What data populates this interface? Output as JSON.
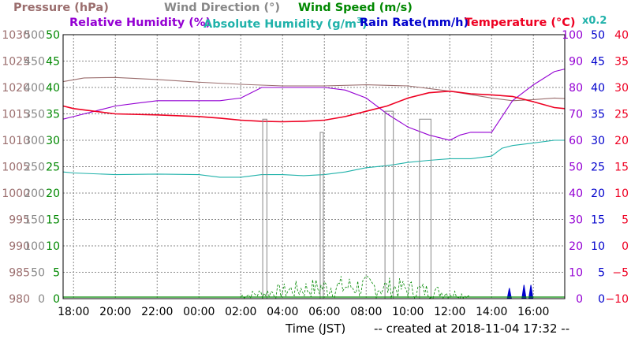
{
  "legend": {
    "pressure": "Pressure (hPa)",
    "wind_direction": "Wind Direction (°)",
    "wind_speed": "Wind Speed (m/s)",
    "relative_humidity": "Relative Humidity (%)",
    "absolute_humidity_prefix": "Absolute Humidity (g/m",
    "absolute_humidity_sup": "3",
    "absolute_humidity_suffix": ")",
    "rain_rate": "Rain Rate(mm/h)",
    "temperature": "Temperature (°C)",
    "scale_factor": "x0.2"
  },
  "colors": {
    "pressure": "#9b6e6e",
    "wind_direction": "#888888",
    "wind_speed": "#008800",
    "relative_humidity": "#9400d3",
    "absolute_humidity": "#20b2aa",
    "rain_rate": "#0000cc",
    "temperature": "#ee0022",
    "grid": "#888888"
  },
  "footer": {
    "xlabel": "Time (JST)",
    "created": "-- created at 2018-11-04 17:32 --"
  },
  "chart_data": {
    "type": "line",
    "xlabel": "Time (JST)",
    "x_tick_labels": [
      "18:00",
      "20:00",
      "22:00",
      "00:00",
      "02:00",
      "04:00",
      "06:00",
      "08:00",
      "10:00",
      "12:00",
      "14:00",
      "16:00"
    ],
    "x_range_hours": [
      17.5,
      41.5
    ],
    "grid": true,
    "axes": {
      "pressure": {
        "range": [
          980,
          1030
        ],
        "ticks": [
          "1030",
          "1025",
          "1020",
          "1015",
          "1010",
          "1005",
          "1000",
          "995",
          "990",
          "985",
          "980"
        ]
      },
      "wind_direction": {
        "range": [
          0,
          500
        ],
        "ticks": [
          "500",
          "450",
          "400",
          "350",
          "300",
          "250",
          "200",
          "150",
          "100",
          "50",
          "0"
        ]
      },
      "wind_speed": {
        "range": [
          0,
          50
        ],
        "ticks": [
          "50",
          "45",
          "40",
          "35",
          "30",
          "25",
          "20",
          "15",
          "10",
          "5",
          "0"
        ]
      },
      "relative_humidity": {
        "range": [
          0,
          100
        ],
        "ticks": [
          "100",
          "90",
          "80",
          "70",
          "60",
          "50",
          "40",
          "30",
          "20",
          "10",
          "0"
        ]
      },
      "rain_rate": {
        "range": [
          0,
          50
        ],
        "ticks": [
          "50",
          "45",
          "40",
          "35",
          "30",
          "25",
          "20",
          "15",
          "10",
          "5",
          "0"
        ]
      },
      "temperature": {
        "range": [
          -10,
          40
        ],
        "ticks": [
          "40",
          "35",
          "30",
          "25",
          "20",
          "15",
          "10",
          "5",
          "0",
          "−5",
          "−10"
        ]
      }
    },
    "series": [
      {
        "name": "Pressure (hPa)",
        "axis": "pressure",
        "x": [
          17.5,
          18.5,
          20,
          22,
          24,
          26,
          28,
          30,
          32,
          34,
          36,
          38,
          39,
          40,
          41,
          41.5
        ],
        "y": [
          1021.1,
          1021.8,
          1021.9,
          1021.5,
          1021.0,
          1020.6,
          1020.3,
          1020.3,
          1020.5,
          1020.3,
          1019.3,
          1018.0,
          1017.5,
          1017.7,
          1018.0,
          1017.9
        ]
      },
      {
        "name": "Relative Humidity (%)",
        "axis": "relative_humidity",
        "x": [
          17.5,
          18,
          19,
          20,
          21,
          22,
          23,
          24,
          25,
          26,
          26.5,
          27,
          28,
          29,
          30,
          31,
          32,
          33,
          34,
          35,
          36,
          36.5,
          37,
          38,
          38.5,
          39,
          39.5,
          40,
          41,
          41.5
        ],
        "y": [
          68,
          69,
          71,
          73,
          74,
          75,
          75,
          75,
          75,
          76,
          78,
          80,
          80,
          80,
          80,
          79,
          76,
          70,
          65,
          62,
          60,
          62,
          63,
          63,
          69,
          75,
          78,
          81,
          86,
          87
        ]
      },
      {
        "name": "Temperature (°C)",
        "axis": "temperature",
        "x": [
          17.5,
          18,
          19,
          20,
          22,
          24,
          25,
          26,
          27,
          28,
          29,
          30,
          31,
          32,
          33,
          34,
          35,
          36,
          37,
          38,
          39,
          40,
          41,
          41.5
        ],
        "y": [
          26.5,
          26,
          25.5,
          25,
          24.8,
          24.5,
          24.2,
          23.8,
          23.6,
          23.5,
          23.6,
          23.8,
          24.5,
          25.5,
          26.5,
          28,
          29,
          29.3,
          28.8,
          28.6,
          28.3,
          27.3,
          26.2,
          26.0
        ]
      },
      {
        "name": "Absolute Humidity (g/m3)",
        "axis": "pressure_grid_0_50",
        "x": [
          17.5,
          18,
          20,
          22,
          24,
          25,
          26,
          27,
          28,
          29,
          30,
          31,
          32,
          33,
          34,
          35,
          36,
          37,
          38,
          38.5,
          39,
          40,
          41,
          41.5
        ],
        "y": [
          24.0,
          23.8,
          23.5,
          23.6,
          23.5,
          23.0,
          23.0,
          23.5,
          23.5,
          23.3,
          23.5,
          24.0,
          24.8,
          25.2,
          25.8,
          26.2,
          26.5,
          26.5,
          27.0,
          28.5,
          29.0,
          29.5,
          30.0,
          30.0
        ]
      },
      {
        "name": "Wind Direction (°)",
        "axis": "wind_direction",
        "blocks": [
          [
            27.05,
            27.25,
            340
          ],
          [
            29.8,
            29.95,
            315
          ],
          [
            32.9,
            33.3,
            355
          ],
          [
            34.55,
            35.1,
            340
          ]
        ]
      },
      {
        "name": "Rain Rate(mm/h)",
        "axis": "rain_rate",
        "bars": [
          [
            38.75,
            38.95,
            2.0
          ],
          [
            39.45,
            39.65,
            2.6
          ],
          [
            39.78,
            39.98,
            2.6
          ]
        ]
      },
      {
        "name": "Wind Speed (m/s)",
        "axis": "wind_speed",
        "baseline": 0.3,
        "gust_window_hours": [
          26,
          37
        ]
      }
    ]
  }
}
